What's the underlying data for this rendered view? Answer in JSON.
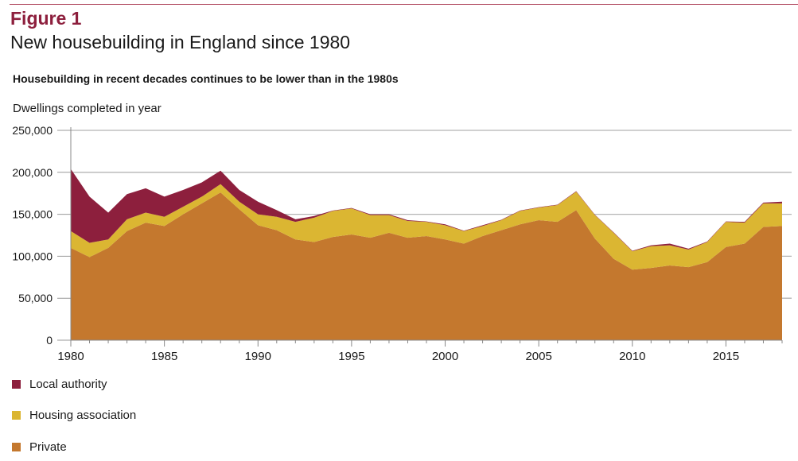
{
  "header": {
    "figure": "Figure 1",
    "title": "New housebuilding in England since 1980"
  },
  "chart_data": {
    "type": "area",
    "stacked": true,
    "title": "Housebuilding in recent decades continues to be lower than in the 1980s",
    "ylabel": "Dwellings completed in year",
    "xlabel": "",
    "ylim": [
      0,
      250000
    ],
    "xlim": [
      1980,
      2018
    ],
    "yticks": [
      0,
      50000,
      100000,
      150000,
      200000,
      250000
    ],
    "ytick_labels": [
      "0",
      "50,000",
      "100,000",
      "150,000",
      "200,000",
      "250,000"
    ],
    "xticks": [
      1980,
      1985,
      1990,
      1995,
      2000,
      2005,
      2010,
      2015
    ],
    "xtick_labels": [
      "1980",
      "1985",
      "1990",
      "1995",
      "2000",
      "2005",
      "2010",
      "2015"
    ],
    "grid": true,
    "legend_placement": "bottom-left",
    "x": [
      1980,
      1981,
      1982,
      1983,
      1984,
      1985,
      1986,
      1987,
      1988,
      1989,
      1990,
      1991,
      1992,
      1993,
      1994,
      1995,
      1996,
      1997,
      1998,
      1999,
      2000,
      2001,
      2002,
      2003,
      2004,
      2005,
      2006,
      2007,
      2008,
      2009,
      2010,
      2011,
      2012,
      2013,
      2014,
      2015,
      2016,
      2017,
      2018
    ],
    "series": [
      {
        "name": "Private",
        "color": "#c4782e",
        "values": [
          110000,
          99000,
          110000,
          130000,
          140000,
          136000,
          150000,
          163000,
          176000,
          156000,
          137000,
          131000,
          120000,
          117000,
          123000,
          126000,
          122000,
          128000,
          122000,
          124000,
          120000,
          115000,
          124000,
          131000,
          138000,
          143000,
          141000,
          155000,
          121000,
          97000,
          84000,
          86000,
          89000,
          87000,
          93000,
          111000,
          115000,
          135000,
          136000
        ]
      },
      {
        "name": "Housing association",
        "color": "#dbb632",
        "values": [
          20000,
          17000,
          10000,
          14000,
          12000,
          11000,
          9000,
          8000,
          10000,
          9000,
          13000,
          16000,
          21000,
          29000,
          31000,
          31000,
          27000,
          21000,
          20000,
          17000,
          17000,
          15000,
          12000,
          12000,
          16000,
          15000,
          20000,
          22000,
          28000,
          31000,
          22000,
          26000,
          24000,
          21000,
          24000,
          30000,
          25000,
          28000,
          27000
        ]
      },
      {
        "name": "Local authority",
        "color": "#8d1f3d",
        "values": [
          74000,
          55000,
          32000,
          30000,
          29000,
          24000,
          20000,
          17000,
          16000,
          14000,
          15000,
          8000,
          3000,
          2000,
          500,
          500,
          1000,
          1000,
          1000,
          500,
          1000,
          500,
          1000,
          500,
          500,
          500,
          500,
          500,
          500,
          500,
          500,
          1000,
          2000,
          1000,
          500,
          500,
          1000,
          1000,
          2000
        ]
      }
    ]
  }
}
